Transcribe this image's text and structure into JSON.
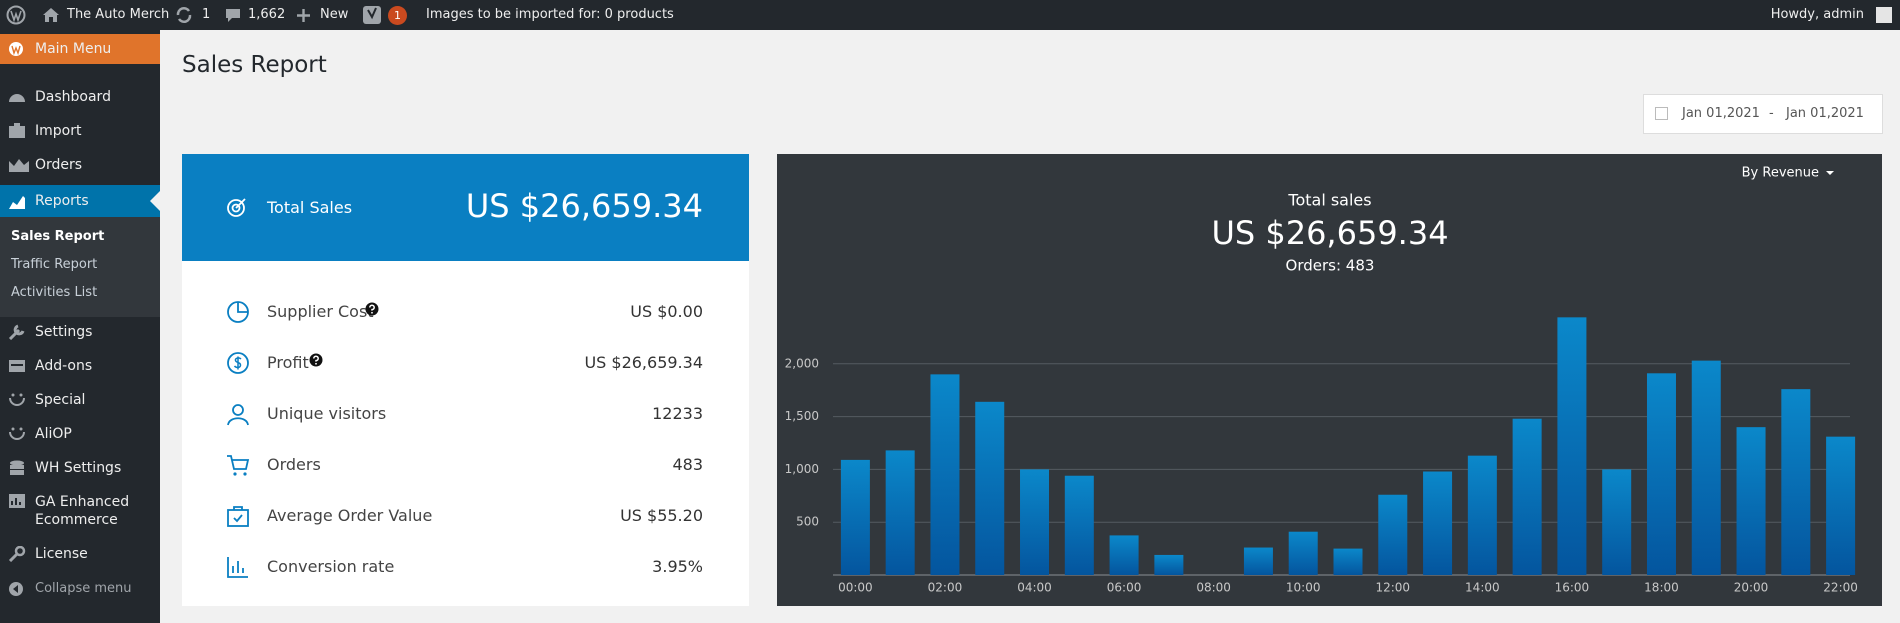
{
  "admin_bar": {
    "site": "The Auto Merch",
    "updates": "1",
    "comments": "1,662",
    "new": "New",
    "yoast_count": "1",
    "notice": "Images to be imported for: 0 products",
    "greeting": "Howdy, admin"
  },
  "sidebar": {
    "main_menu": "Main Menu",
    "menu_top": [
      "Dashboard",
      "Import",
      "Orders"
    ],
    "active": "Reports",
    "submenu": [
      "Sales Report",
      "Traffic Report",
      "Activities List"
    ],
    "menu_bottom": [
      "Settings",
      "Add-ons",
      "Special",
      "AliOP",
      "WH Settings",
      "GA Enhanced Ecommerce",
      "License"
    ],
    "collapse": "Collapse menu"
  },
  "page": {
    "title": "Sales Report",
    "date_from": "Jan 01,2021",
    "date_separator": "-",
    "date_to": "Jan 01,2021"
  },
  "summary": {
    "total_label": "Total Sales",
    "total_value": "US $26,659.34",
    "rows": [
      {
        "label": "Supplier Cost",
        "value": "US $0.00"
      },
      {
        "label": "Profit",
        "value": "US $26,659.34"
      },
      {
        "label": "Unique visitors",
        "value": "12233"
      },
      {
        "label": "Orders",
        "value": "483"
      },
      {
        "label": "Average Order Value",
        "value": "US $55.20"
      },
      {
        "label": "Conversion rate",
        "value": "3.95%"
      }
    ]
  },
  "chart_controls": {
    "metric": "By Revenue"
  },
  "chart_data": {
    "type": "bar",
    "title": "Total sales",
    "subtitle": "US $26,659.34",
    "annotation": "Orders: 483",
    "categories": [
      "00:00",
      null,
      "02:00",
      null,
      "04:00",
      null,
      "06:00",
      null,
      "08:00",
      null,
      "10:00",
      null,
      "12:00",
      null,
      "14:00",
      null,
      "16:00",
      null,
      "18:00",
      null,
      "20:00",
      null,
      "22:00"
    ],
    "values": [
      1090,
      1180,
      1900,
      1640,
      1000,
      940,
      375,
      190,
      0,
      260,
      410,
      250,
      760,
      980,
      1130,
      1480,
      2440,
      1000,
      1910,
      2030,
      1400,
      1760,
      1310
    ],
    "ylim": [
      0,
      2500
    ],
    "yticks": [
      500,
      {
        "value": 1000,
        "label": "1,000"
      },
      {
        "value": 1500,
        "label": "1,500"
      },
      {
        "value": 2000,
        "label": "2,000"
      }
    ],
    "grid": true,
    "gradient": [
      "#0b88ca",
      "#04559e"
    ]
  }
}
